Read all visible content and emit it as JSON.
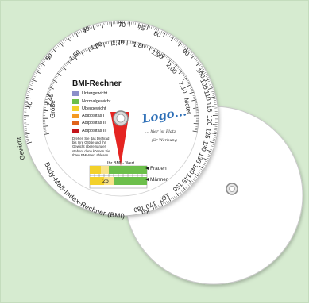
{
  "colors": {
    "background": "#d6ebd0",
    "disc": "#ffffff",
    "pointer": "#e52421",
    "legend_blue": "#8b8fc9",
    "legend_green": "#6cbf4b",
    "legend_yellow": "#f3d12a",
    "legend_orange": "#f49a22",
    "legend_darkorange": "#e0631b",
    "legend_red": "#c4161c",
    "logo_blue": "#2d6fb7",
    "logo_green": "#7dbb3d"
  },
  "outer_scale": {
    "label": "Gewicht",
    "unit": "Kg",
    "ticks": [
      "40",
      "45",
      "50",
      "55",
      "60",
      "65",
      "70",
      "75",
      "80",
      "85",
      "90",
      "95",
      "100",
      "105",
      "110",
      "115",
      "120",
      "125",
      "130",
      "135",
      "140",
      "145",
      "150",
      "160",
      "170",
      "180"
    ]
  },
  "inner_scale": {
    "label": "Größe",
    "unit": "Meter",
    "ticks": [
      "1,40",
      "1,50",
      "1,60",
      "1,70",
      "1,80",
      "1,90",
      "2,00",
      "2,10"
    ]
  },
  "title": "BMI-Rechner",
  "legend": [
    {
      "label": "Untergewicht",
      "color": "#8b8fc9"
    },
    {
      "label": "Normalgewicht",
      "color": "#6cbf4b"
    },
    {
      "label": "Übergewicht",
      "color": "#f3d12a"
    },
    {
      "label": "Adipositas I",
      "color": "#f49a22"
    },
    {
      "label": "Adipositas II",
      "color": "#e0631b"
    },
    {
      "label": "Adipositas III",
      "color": "#c4161c"
    }
  ],
  "instructions": "Drehen Sie das Drehrad bis Ihre Größe und Ihr Gewicht übereinander stehen, dann können Sie Ihren BMI-Wert ablesen",
  "logo": {
    "word": "Logo...",
    "line1": "... hier ist Platz",
    "line2": "für Werbung"
  },
  "pointer_label": "Ihr BMI - Wert",
  "bands": {
    "women": "Frauen",
    "men": "Männer",
    "value": "25"
  },
  "bottom_title": "Body-Maß-Index-Rechner (BMI)"
}
